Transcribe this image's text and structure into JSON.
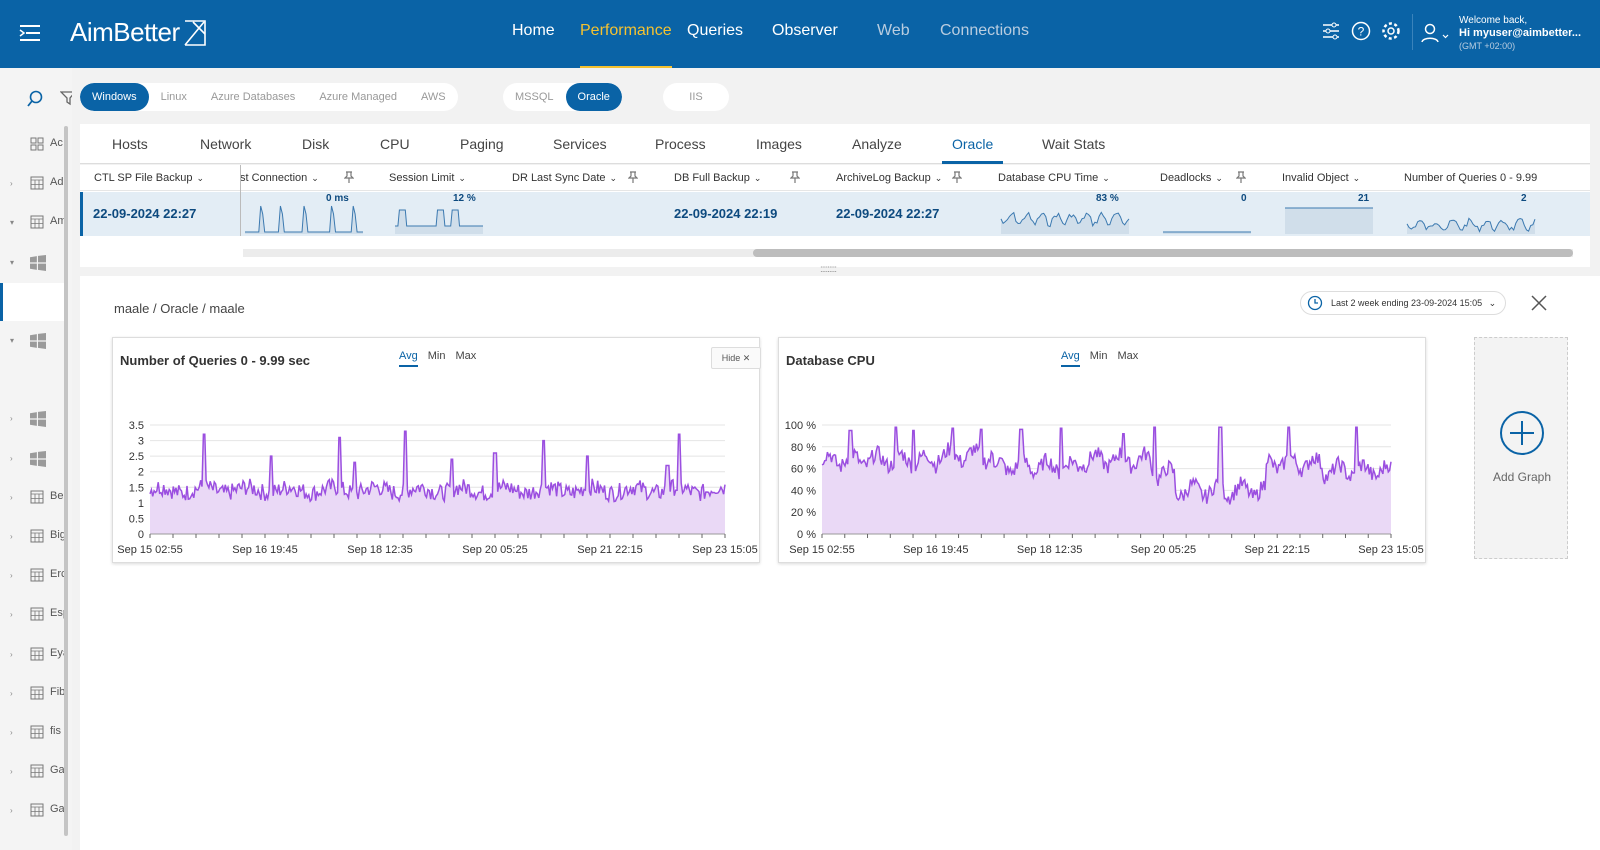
{
  "app": {
    "logo_text": "AimBetter"
  },
  "nav": {
    "items": [
      {
        "label": "Home",
        "state": "normal"
      },
      {
        "label": "Performance",
        "state": "active"
      },
      {
        "label": "Queries",
        "state": "normal"
      },
      {
        "label": "Observer",
        "state": "normal"
      },
      {
        "label": "Web",
        "state": "dim"
      },
      {
        "label": "Connections",
        "state": "dim"
      }
    ]
  },
  "user": {
    "welcome": "Welcome back,",
    "hi": "Hi myuser@aimbetter...",
    "gmt": "(GMT +02:00)"
  },
  "left_tree": [
    {
      "label": "Ac",
      "icon": "grid-icon",
      "chev": ""
    },
    {
      "label": "Ad",
      "icon": "table-icon",
      "chev": "right"
    },
    {
      "label": "Am",
      "icon": "table-icon",
      "chev": "down"
    },
    {
      "label": "",
      "icon": "windows-icon",
      "chev": "down"
    },
    {
      "label": "",
      "icon": "",
      "chev": "",
      "selected": true
    },
    {
      "label": "",
      "icon": "windows-icon",
      "chev": "down"
    },
    {
      "label": "",
      "icon": "",
      "chev": ""
    },
    {
      "label": "",
      "icon": "windows-icon",
      "chev": "right"
    },
    {
      "label": "",
      "icon": "windows-icon",
      "chev": "right"
    },
    {
      "label": "Be",
      "icon": "table-icon",
      "chev": "right"
    },
    {
      "label": "Big",
      "icon": "table-icon",
      "chev": "right"
    },
    {
      "label": "Erc",
      "icon": "table-icon",
      "chev": "right"
    },
    {
      "label": "Esp",
      "icon": "table-icon",
      "chev": "right"
    },
    {
      "label": "Eya",
      "icon": "table-icon",
      "chev": "right"
    },
    {
      "label": "Fib",
      "icon": "table-icon",
      "chev": "right"
    },
    {
      "label": "fis",
      "icon": "table-icon",
      "chev": "right"
    },
    {
      "label": "Ga",
      "icon": "table-icon",
      "chev": "right"
    },
    {
      "label": "Ga",
      "icon": "table-icon",
      "chev": "right"
    }
  ],
  "os_filter": [
    "Windows",
    "Linux",
    "Azure Databases",
    "Azure Managed",
    "AWS"
  ],
  "os_selected": "Windows",
  "db_filter": [
    "MSSQL",
    "Oracle"
  ],
  "db_selected": "Oracle",
  "web_filter": [
    "IIS"
  ],
  "tabs": [
    "Hosts",
    "Network",
    "Disk",
    "CPU",
    "Paging",
    "Services",
    "Process",
    "Images",
    "Analyze",
    "Oracle",
    "Wait Stats"
  ],
  "active_tab": "Oracle",
  "grid": {
    "columns": [
      {
        "label": "CTL SP File Backup",
        "pin": false
      },
      {
        "label": "st Connection",
        "pin": true
      },
      {
        "label": "Session Limit",
        "pin": false
      },
      {
        "label": "DR Last Sync Date",
        "pin": true
      },
      {
        "label": "DB Full Backup",
        "pin": true
      },
      {
        "label": "ArchiveLog Backup",
        "pin": true
      },
      {
        "label": "Database CPU Time",
        "pin": false
      },
      {
        "label": "Deadlocks",
        "pin": true
      },
      {
        "label": "Invalid Object",
        "pin": false
      },
      {
        "label": "Number of Queries 0 - 9.99",
        "pin": false
      }
    ],
    "row": {
      "ctl_sp_file_backup": "22-09-2024 22:27",
      "last_connection": "0 ms",
      "session_limit": "12 %",
      "dr_last_sync_date": "",
      "db_full_backup": "22-09-2024 22:19",
      "archivelog_backup": "22-09-2024 22:27",
      "database_cpu_time": "83 %",
      "deadlocks": "0",
      "invalid_object": "21",
      "number_of_queries": "2"
    }
  },
  "detail": {
    "breadcrumb": "maale / Oracle / maale",
    "range_label": "Last 2 week ending  23-09-2024 15:05",
    "add_graph_label": "Add Graph",
    "hide_label": "Hide",
    "agg_options": [
      "Avg",
      "Min",
      "Max"
    ],
    "agg_selected": "Avg"
  },
  "chart_data": [
    {
      "type": "area",
      "title": "Number of Queries 0 - 9.99 sec",
      "x_ticks": [
        "Sep 15 02:55",
        "Sep 16 19:45",
        "Sep 18 12:35",
        "Sep 20 05:25",
        "Sep 21 22:15",
        "Sep 23 15:05"
      ],
      "y_ticks": [
        "0",
        "0.5",
        "1",
        "1.5",
        "2",
        "2.5",
        "3",
        "3.5"
      ],
      "ylim": [
        0,
        3.5
      ],
      "baseline": 1.3,
      "spikes": [
        {
          "x": 0.095,
          "y": 3.2
        },
        {
          "x": 0.21,
          "y": 2.5
        },
        {
          "x": 0.33,
          "y": 3.1
        },
        {
          "x": 0.355,
          "y": 2.3
        },
        {
          "x": 0.445,
          "y": 3.3
        },
        {
          "x": 0.525,
          "y": 2.4
        },
        {
          "x": 0.6,
          "y": 2.6
        },
        {
          "x": 0.685,
          "y": 3.0
        },
        {
          "x": 0.76,
          "y": 2.5
        },
        {
          "x": 0.9,
          "y": 2.2
        },
        {
          "x": 0.92,
          "y": 3.2
        }
      ],
      "line_color": "#9b4fe0",
      "fill_color": "#ead9f6"
    },
    {
      "type": "area",
      "title": "Database CPU",
      "x_ticks": [
        "Sep 15 02:55",
        "Sep 16 19:45",
        "Sep 18 12:35",
        "Sep 20 05:25",
        "Sep 21 22:15",
        "Sep 23 15:05"
      ],
      "y_ticks": [
        "0 %",
        "20 %",
        "40 %",
        "60 %",
        "80 %",
        "100 %"
      ],
      "ylim": [
        0,
        100
      ],
      "segments": [
        {
          "from": 0.0,
          "to": 0.2,
          "level": 68
        },
        {
          "from": 0.2,
          "to": 0.3,
          "level": 72
        },
        {
          "from": 0.3,
          "to": 0.45,
          "level": 62
        },
        {
          "from": 0.45,
          "to": 0.58,
          "level": 68
        },
        {
          "from": 0.58,
          "to": 0.62,
          "level": 55
        },
        {
          "from": 0.62,
          "to": 0.78,
          "level": 40
        },
        {
          "from": 0.78,
          "to": 0.88,
          "level": 65
        },
        {
          "from": 0.88,
          "to": 1.0,
          "level": 58
        }
      ],
      "spikes": [
        {
          "x": 0.05,
          "y": 95
        },
        {
          "x": 0.13,
          "y": 98
        },
        {
          "x": 0.16,
          "y": 95
        },
        {
          "x": 0.23,
          "y": 97
        },
        {
          "x": 0.28,
          "y": 96
        },
        {
          "x": 0.35,
          "y": 96
        },
        {
          "x": 0.42,
          "y": 97
        },
        {
          "x": 0.53,
          "y": 92
        },
        {
          "x": 0.585,
          "y": 98
        },
        {
          "x": 0.7,
          "y": 98
        },
        {
          "x": 0.82,
          "y": 98
        },
        {
          "x": 0.94,
          "y": 98
        }
      ],
      "line_color": "#9b4fe0",
      "fill_color": "#ead9f6"
    }
  ],
  "mini_sparks": [
    {
      "name": "last-connection-spark",
      "kind": "spiky"
    },
    {
      "name": "session-limit-spark",
      "kind": "steps"
    },
    {
      "name": "cpu-time-spark",
      "kind": "wavy"
    },
    {
      "name": "deadlocks-spark",
      "kind": "flat"
    },
    {
      "name": "invalid-object-spark",
      "kind": "flat-fill"
    },
    {
      "name": "queries-spark",
      "kind": "wavy-low"
    }
  ]
}
